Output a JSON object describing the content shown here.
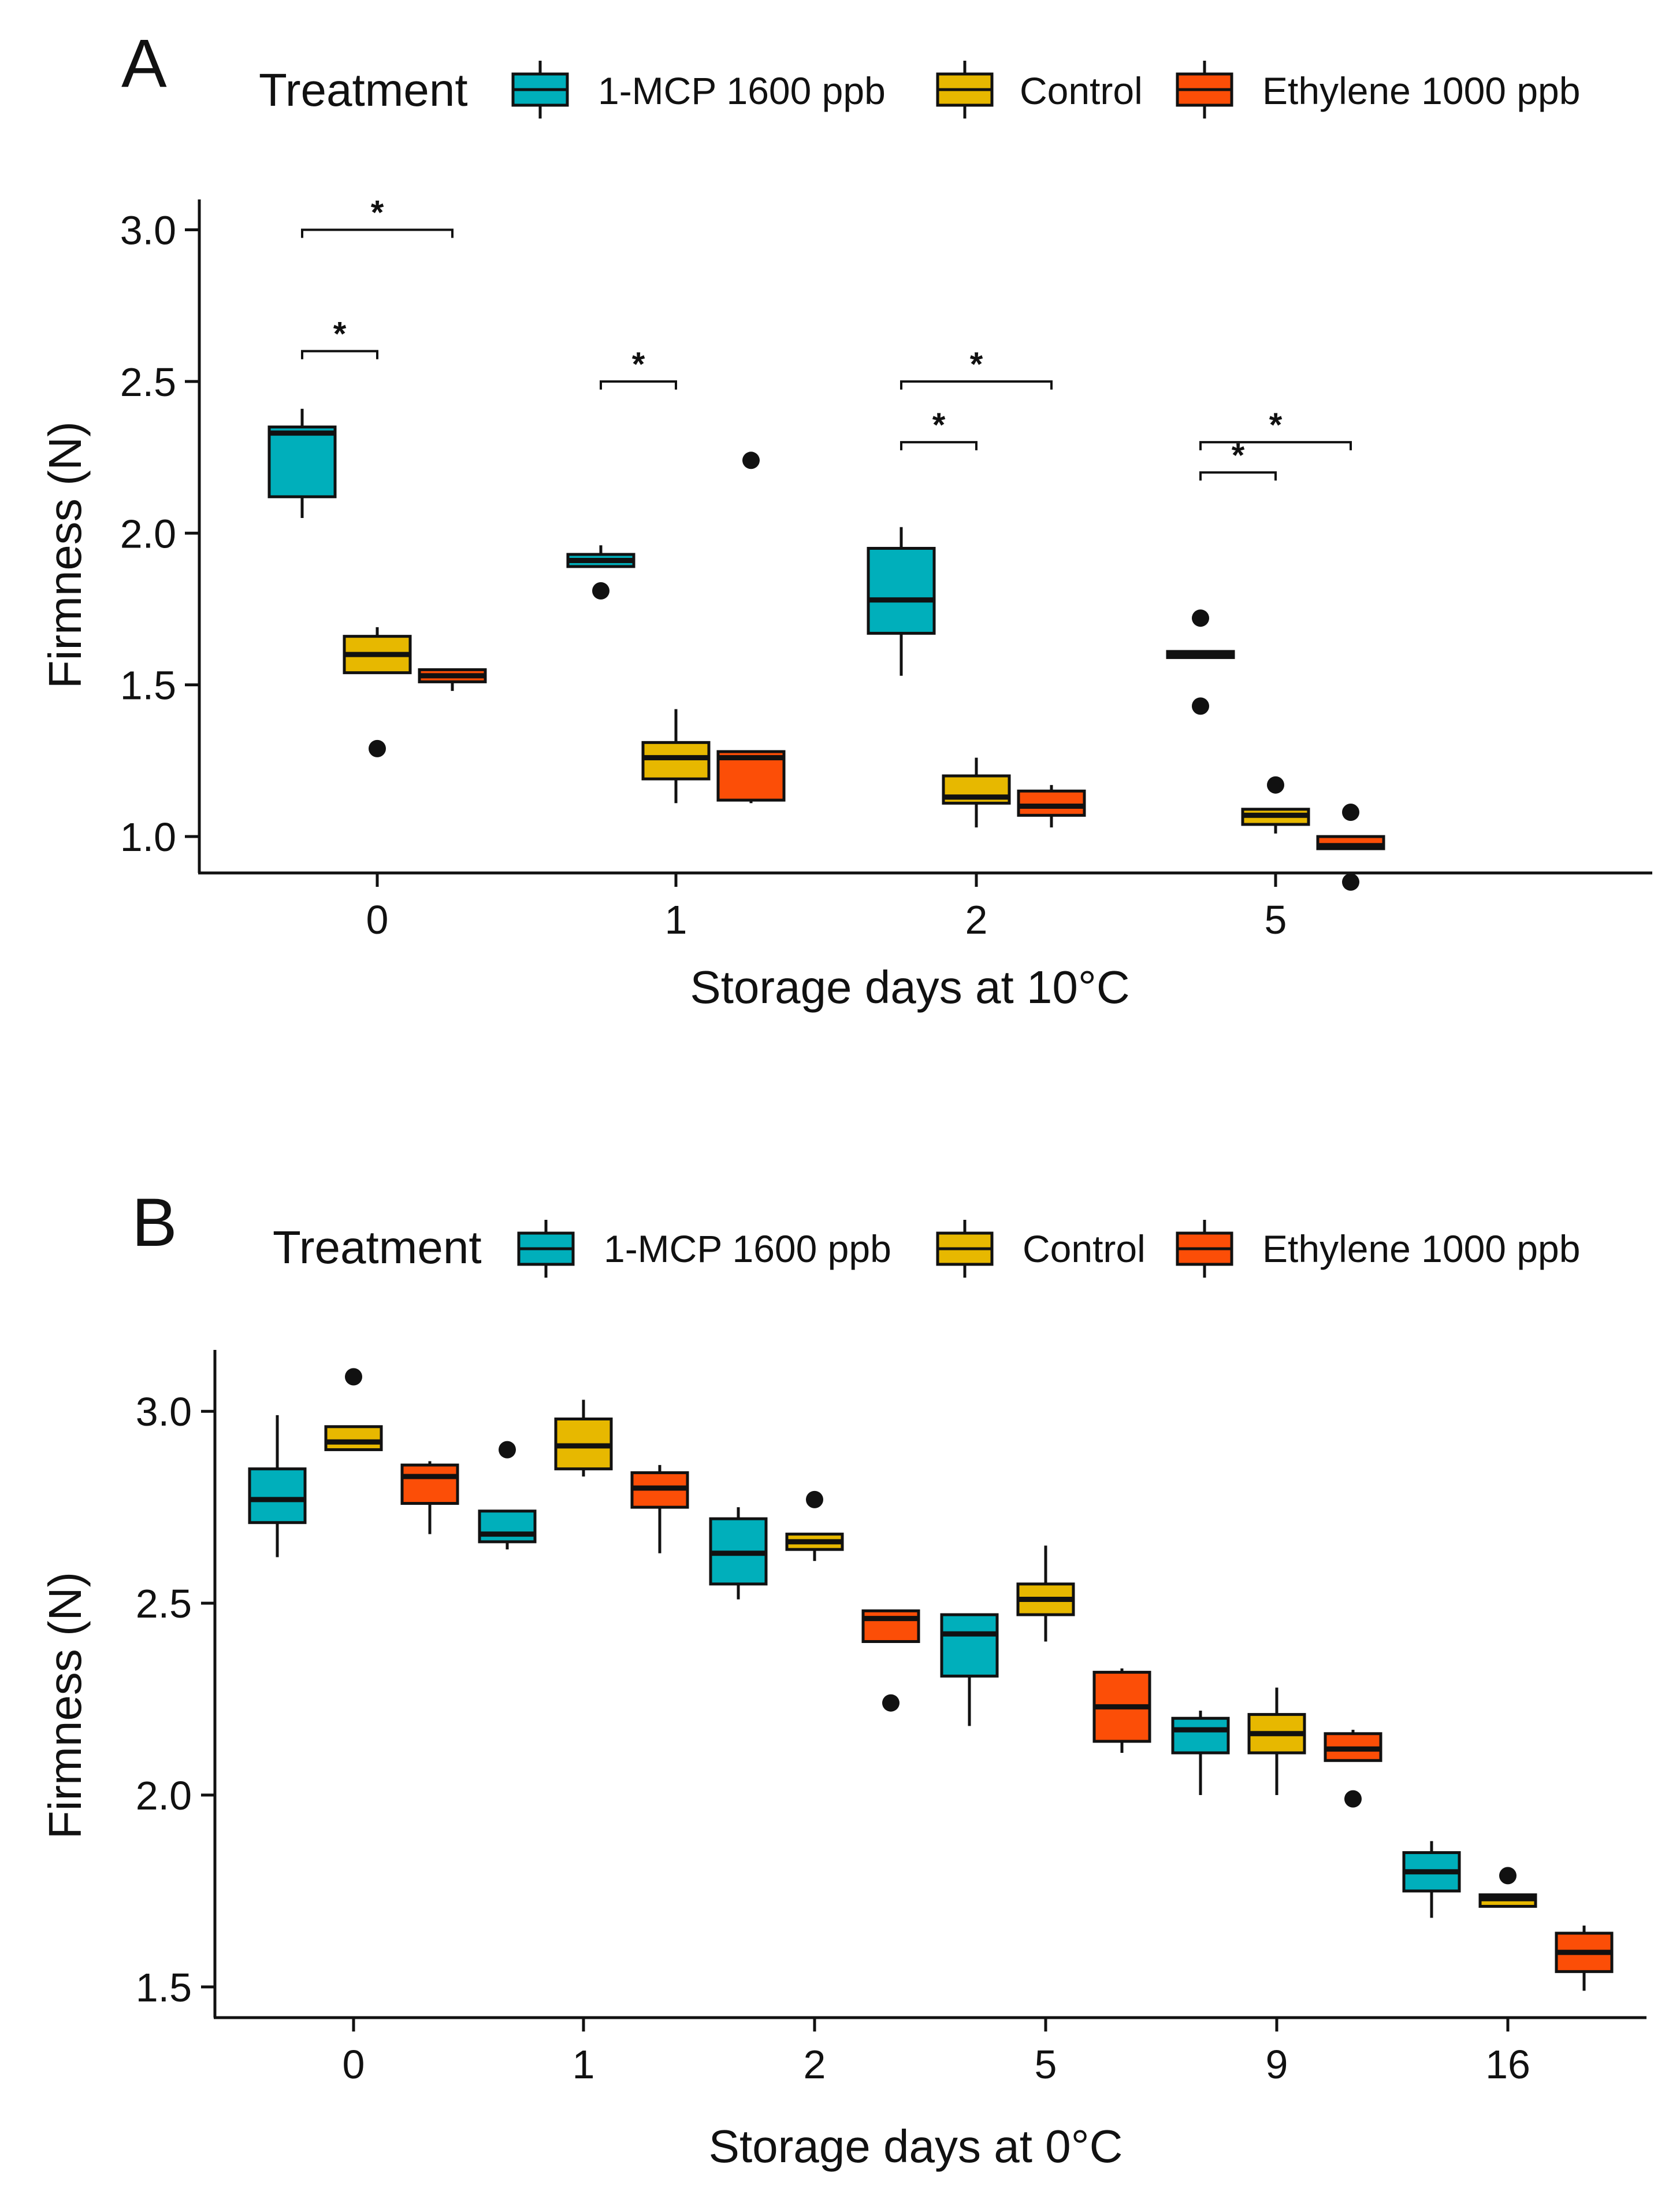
{
  "colors": {
    "mcp": "#00afbb",
    "control": "#e7b800",
    "ethylene": "#fc4e07",
    "ink": "#111111"
  },
  "legend": {
    "title": "Treatment",
    "items": [
      {
        "label": "1-MCP 1600 ppb",
        "color": "#00afbb"
      },
      {
        "label": "Control",
        "color": "#e7b800"
      },
      {
        "label": "Ethylene 1000 ppb",
        "color": "#fc4e07"
      }
    ]
  },
  "chart_data": [
    {
      "type": "box",
      "panel": "A",
      "xlabel": "Storage days at 10°C",
      "ylabel": "Firmness (N)",
      "ylim": [
        0.88,
        3.1
      ],
      "yticks": [
        1.0,
        1.5,
        2.0,
        2.5,
        3.0
      ],
      "ytick_labels": [
        "1.0",
        "1.5",
        "2.0",
        "2.5",
        "3.0"
      ],
      "categories": [
        "0",
        "1",
        "2",
        "5"
      ],
      "series": [
        {
          "name": "1-MCP 1600 ppb",
          "boxes": [
            {
              "min": 2.05,
              "q1": 2.12,
              "median": 2.33,
              "q3": 2.35,
              "max": 2.41,
              "outliers": []
            },
            {
              "min": 1.89,
              "q1": 1.89,
              "median": 1.91,
              "q3": 1.93,
              "max": 1.96,
              "outliers": [
                1.81
              ]
            },
            {
              "min": 1.53,
              "q1": 1.67,
              "median": 1.78,
              "q3": 1.95,
              "max": 2.02,
              "outliers": []
            },
            {
              "min": 1.59,
              "q1": 1.59,
              "median": 1.6,
              "q3": 1.61,
              "max": 1.61,
              "outliers": [
                1.72,
                1.43
              ]
            }
          ]
        },
        {
          "name": "Control",
          "boxes": [
            {
              "min": 1.54,
              "q1": 1.54,
              "median": 1.6,
              "q3": 1.66,
              "max": 1.69,
              "outliers": [
                1.29
              ]
            },
            {
              "min": 1.11,
              "q1": 1.19,
              "median": 1.26,
              "q3": 1.31,
              "max": 1.42,
              "outliers": []
            },
            {
              "min": 1.03,
              "q1": 1.11,
              "median": 1.13,
              "q3": 1.2,
              "max": 1.26,
              "outliers": []
            },
            {
              "min": 1.01,
              "q1": 1.04,
              "median": 1.07,
              "q3": 1.09,
              "max": 1.09,
              "outliers": [
                1.17
              ]
            }
          ]
        },
        {
          "name": "Ethylene 1000 ppb",
          "boxes": [
            {
              "min": 1.48,
              "q1": 1.51,
              "median": 1.53,
              "q3": 1.55,
              "max": 1.55,
              "outliers": []
            },
            {
              "min": 1.11,
              "q1": 1.12,
              "median": 1.26,
              "q3": 1.28,
              "max": 1.28,
              "outliers": [
                2.24
              ]
            },
            {
              "min": 1.03,
              "q1": 1.07,
              "median": 1.1,
              "q3": 1.15,
              "max": 1.17,
              "outliers": []
            },
            {
              "min": 0.96,
              "q1": 0.96,
              "median": 0.97,
              "q3": 1.0,
              "max": 1.0,
              "outliers": [
                1.08,
                0.85
              ]
            }
          ]
        }
      ],
      "significance": [
        {
          "category": 0,
          "from": 0,
          "to": 2,
          "y": 3.0,
          "label": "*"
        },
        {
          "category": 0,
          "from": 0,
          "to": 1,
          "y": 2.6,
          "label": "*"
        },
        {
          "category": 1,
          "from": 0,
          "to": 1,
          "y": 2.5,
          "label": "*"
        },
        {
          "category": 2,
          "from": 0,
          "to": 2,
          "y": 2.5,
          "label": "*"
        },
        {
          "category": 2,
          "from": 0,
          "to": 1,
          "y": 2.3,
          "label": "*"
        },
        {
          "category": 3,
          "from": 0,
          "to": 2,
          "y": 2.3,
          "label": "*"
        },
        {
          "category": 3,
          "from": 0,
          "to": 1,
          "y": 2.2,
          "label": "*"
        }
      ]
    },
    {
      "type": "box",
      "panel": "B",
      "xlabel": "Storage days at 0°C",
      "ylabel": "Firmness (N)",
      "ylim": [
        1.42,
        3.16
      ],
      "yticks": [
        1.5,
        2.0,
        2.5,
        3.0
      ],
      "ytick_labels": [
        "1.5",
        "2.0",
        "2.5",
        "3.0"
      ],
      "categories": [
        "0",
        "1",
        "2",
        "5",
        "9",
        "16"
      ],
      "series": [
        {
          "name": "1-MCP 1600 ppb",
          "boxes": [
            {
              "min": 2.62,
              "q1": 2.71,
              "median": 2.77,
              "q3": 2.85,
              "max": 2.99,
              "outliers": []
            },
            {
              "min": 2.64,
              "q1": 2.66,
              "median": 2.68,
              "q3": 2.74,
              "max": 2.74,
              "outliers": [
                2.9
              ]
            },
            {
              "min": 2.51,
              "q1": 2.55,
              "median": 2.63,
              "q3": 2.72,
              "max": 2.75,
              "outliers": []
            },
            {
              "min": 2.18,
              "q1": 2.31,
              "median": 2.42,
              "q3": 2.47,
              "max": 2.47,
              "outliers": []
            },
            {
              "min": 2.0,
              "q1": 2.11,
              "median": 2.17,
              "q3": 2.2,
              "max": 2.22,
              "outliers": []
            },
            {
              "min": 1.68,
              "q1": 1.75,
              "median": 1.8,
              "q3": 1.85,
              "max": 1.88,
              "outliers": []
            }
          ]
        },
        {
          "name": "Control",
          "boxes": [
            {
              "min": 2.9,
              "q1": 2.9,
              "median": 2.92,
              "q3": 2.96,
              "max": 2.96,
              "outliers": [
                3.09
              ]
            },
            {
              "min": 2.83,
              "q1": 2.85,
              "median": 2.91,
              "q3": 2.98,
              "max": 3.03,
              "outliers": []
            },
            {
              "min": 2.61,
              "q1": 2.64,
              "median": 2.66,
              "q3": 2.68,
              "max": 2.68,
              "outliers": [
                2.77
              ]
            },
            {
              "min": 2.4,
              "q1": 2.47,
              "median": 2.51,
              "q3": 2.55,
              "max": 2.65,
              "outliers": []
            },
            {
              "min": 2.0,
              "q1": 2.11,
              "median": 2.16,
              "q3": 2.21,
              "max": 2.28,
              "outliers": []
            },
            {
              "min": 1.71,
              "q1": 1.71,
              "median": 1.73,
              "q3": 1.74,
              "max": 1.74,
              "outliers": [
                1.79
              ]
            }
          ]
        },
        {
          "name": "Ethylene 1000 ppb",
          "boxes": [
            {
              "min": 2.68,
              "q1": 2.76,
              "median": 2.83,
              "q3": 2.86,
              "max": 2.87,
              "outliers": []
            },
            {
              "min": 2.63,
              "q1": 2.75,
              "median": 2.8,
              "q3": 2.84,
              "max": 2.86,
              "outliers": []
            },
            {
              "min": 2.4,
              "q1": 2.4,
              "median": 2.46,
              "q3": 2.48,
              "max": 2.48,
              "outliers": [
                2.24
              ]
            },
            {
              "min": 2.11,
              "q1": 2.14,
              "median": 2.23,
              "q3": 2.32,
              "max": 2.33,
              "outliers": []
            },
            {
              "min": 2.09,
              "q1": 2.09,
              "median": 2.12,
              "q3": 2.16,
              "max": 2.17,
              "outliers": [
                1.99
              ]
            },
            {
              "min": 1.49,
              "q1": 1.54,
              "median": 1.59,
              "q3": 1.64,
              "max": 1.66,
              "outliers": []
            }
          ]
        }
      ],
      "significance": []
    }
  ]
}
